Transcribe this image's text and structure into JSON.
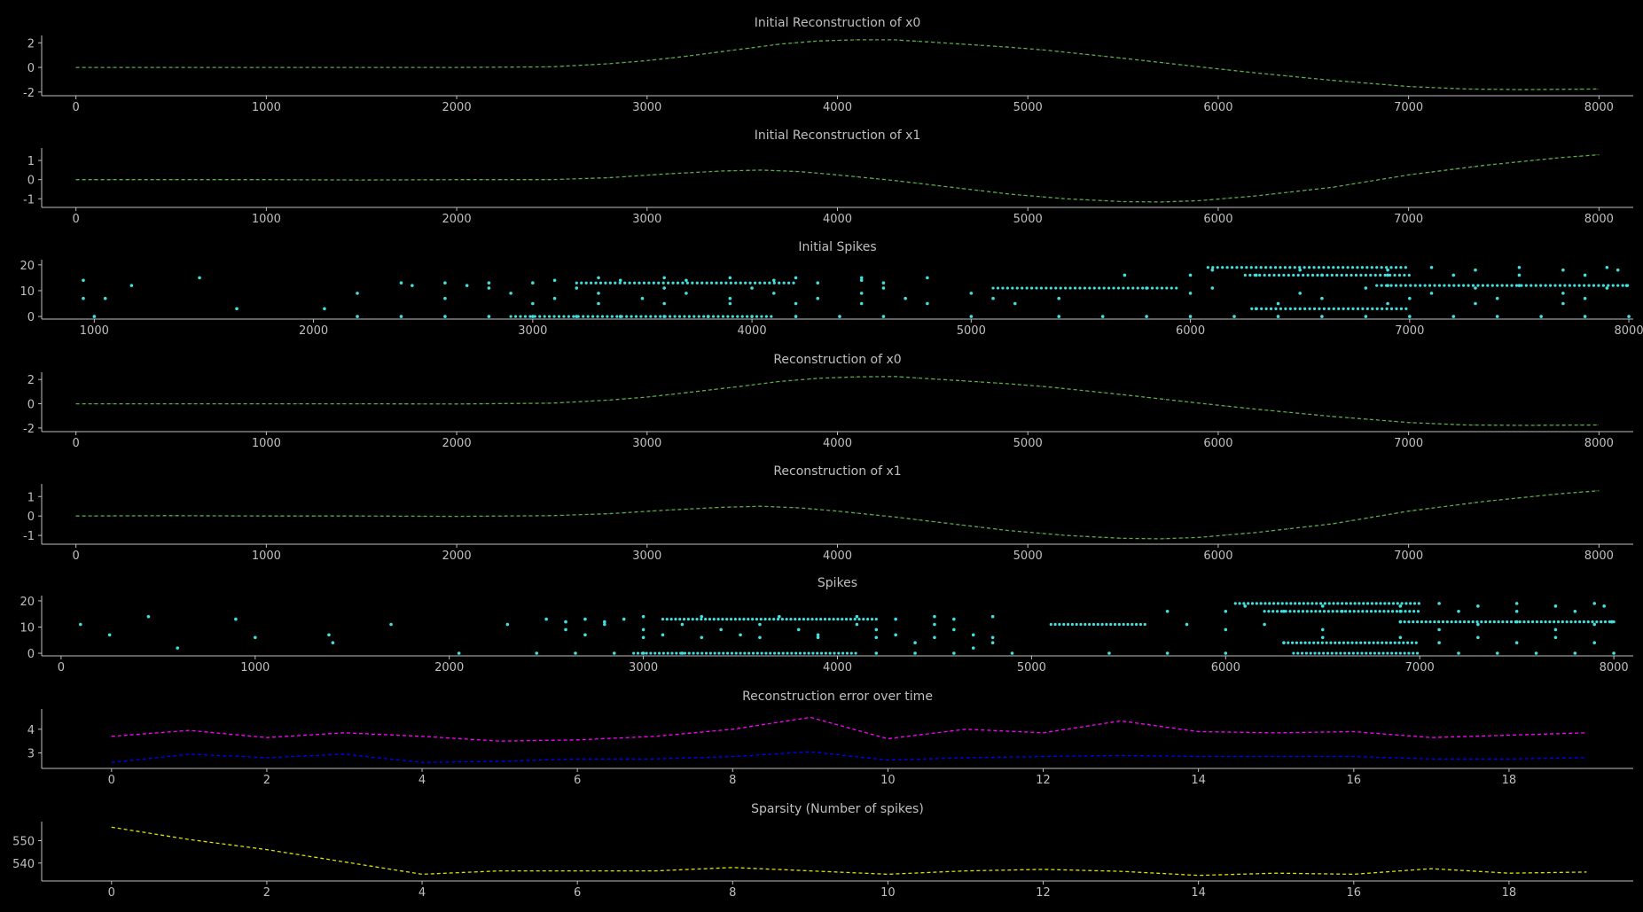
{
  "colors": {
    "background": "#000000",
    "axis": "#bfbfbf",
    "text": "#bfbfbf",
    "reconstruction_green": "#4caf50",
    "reconstruction_orange": "#ff7f0e",
    "spikes": "#40e0e0",
    "error_magenta": "#ff00ff",
    "error_blue": "#0000ff",
    "sparsity_yellow": "#e0e000"
  },
  "chart_data": [
    {
      "type": "line",
      "title": "Initial Reconstruction of x0",
      "xlabel": "",
      "ylabel": "",
      "xlim": [
        -180,
        8180
      ],
      "ylim": [
        -2.3,
        2.6
      ],
      "xticks": [
        0,
        1000,
        2000,
        3000,
        4000,
        5000,
        6000,
        7000,
        8000
      ],
      "yticks": [
        -2,
        0,
        2
      ],
      "grid": false,
      "series": [
        {
          "color": "#4caf50",
          "style": "dashed",
          "x": [
            0,
            500,
            1000,
            1500,
            2000,
            2500,
            2800,
            3000,
            3200,
            3500,
            3700,
            3900,
            4100,
            4300,
            4600,
            4900,
            5100,
            5500,
            5900,
            6200,
            6600,
            7000,
            7300,
            7600,
            8000
          ],
          "y": [
            0,
            0,
            0,
            0,
            0,
            0.05,
            0.3,
            0.55,
            0.9,
            1.5,
            1.9,
            2.15,
            2.25,
            2.25,
            1.95,
            1.65,
            1.4,
            0.75,
            0.05,
            -0.45,
            -1.05,
            -1.55,
            -1.75,
            -1.8,
            -1.75
          ]
        }
      ]
    },
    {
      "type": "line",
      "title": "Initial Reconstruction of x1",
      "xlabel": "",
      "ylabel": "",
      "xlim": [
        -180,
        8180
      ],
      "ylim": [
        -1.45,
        1.65
      ],
      "xticks": [
        0,
        1000,
        2000,
        3000,
        4000,
        5000,
        6000,
        7000,
        8000
      ],
      "yticks": [
        -1,
        0,
        1
      ],
      "grid": false,
      "series": [
        {
          "color": "#4caf50",
          "style": "dashed",
          "x": [
            0,
            500,
            1000,
            1500,
            2000,
            2500,
            2800,
            3100,
            3400,
            3600,
            3800,
            4000,
            4300,
            4600,
            4900,
            5200,
            5500,
            5700,
            5900,
            6200,
            6600,
            7000,
            7400,
            7800,
            8000
          ],
          "y": [
            0,
            0,
            0,
            -0.02,
            0,
            0,
            0.1,
            0.3,
            0.45,
            0.5,
            0.42,
            0.25,
            -0.05,
            -0.4,
            -0.75,
            -1.0,
            -1.15,
            -1.17,
            -1.1,
            -0.85,
            -0.4,
            0.25,
            0.75,
            1.15,
            1.3
          ]
        }
      ]
    },
    {
      "type": "scatter",
      "title": "Initial Spikes",
      "xlabel": "",
      "ylabel": "",
      "xlim": [
        760,
        8020
      ],
      "ylim": [
        -1,
        22
      ],
      "xticks": [
        1000,
        2000,
        3000,
        4000,
        5000,
        6000,
        7000,
        8000
      ],
      "yticks": [
        0,
        10,
        20
      ],
      "grid": false,
      "points_color": "#40e0e0",
      "bands": [
        {
          "y": 0,
          "x": [
            1000,
            2200,
            2400,
            2600,
            2800,
            3000,
            3200,
            3400,
            3600,
            3800,
            4000,
            4200,
            4400,
            4600,
            5000,
            5400,
            5600,
            5800,
            6000,
            6200,
            6400,
            6600,
            6800,
            7000,
            7200,
            7400,
            7600,
            7800,
            8000
          ],
          "dense": [
            [
              2900,
              4100
            ]
          ]
        },
        {
          "y": 3,
          "x": [
            1650,
            2050,
            6300
          ],
          "dense": [
            [
              6280,
              7000
            ]
          ]
        },
        {
          "y": 5,
          "x": [
            3000,
            3300,
            3600,
            3900,
            4200,
            4500,
            4800,
            5200,
            6400,
            6900,
            7300,
            7700
          ],
          "dense": []
        },
        {
          "y": 7,
          "x": [
            950,
            1050,
            2600,
            3100,
            3500,
            3900,
            4300,
            4700,
            5100,
            5400,
            6600,
            7000,
            7400,
            7800
          ],
          "dense": []
        },
        {
          "y": 9,
          "x": [
            2200,
            2900,
            3300,
            3700,
            4100,
            4500,
            5000,
            6000,
            6500,
            7100,
            7700
          ],
          "dense": []
        },
        {
          "y": 11,
          "x": [
            2800,
            3200,
            3600,
            4000,
            4600,
            5800,
            6100,
            6800,
            7300,
            7900
          ],
          "dense": [
            [
              5100,
              5950
            ]
          ]
        },
        {
          "y": 12,
          "x": [
            1170,
            2450,
            2700,
            6900,
            7500,
            7990
          ],
          "dense": [
            [
              6850,
              8000
            ]
          ]
        },
        {
          "y": 13,
          "x": [
            2400,
            2600,
            2800,
            3000,
            4300,
            4600
          ],
          "dense": [
            [
              3200,
              4200
            ]
          ]
        },
        {
          "y": 14,
          "x": [
            950,
            3100,
            3400,
            3700,
            4100,
            4500
          ],
          "dense": []
        },
        {
          "y": 15,
          "x": [
            1480,
            3300,
            3600,
            3900,
            4200,
            4500,
            4800
          ],
          "dense": []
        },
        {
          "y": 16,
          "x": [
            5700,
            6000,
            6300,
            6600,
            6900,
            7200,
            7500,
            7800
          ],
          "dense": [
            [
              6250,
              7000
            ]
          ]
        },
        {
          "y": 18,
          "x": [
            6100,
            6500,
            6900,
            7300,
            7700,
            7950
          ],
          "dense": []
        },
        {
          "y": 19,
          "x": [
            7100,
            7500,
            7900
          ],
          "dense": [
            [
              6080,
              7000
            ]
          ]
        }
      ]
    },
    {
      "type": "line",
      "title": "Reconstruction of x0",
      "xlabel": "",
      "ylabel": "",
      "xlim": [
        -180,
        8180
      ],
      "ylim": [
        -2.3,
        2.6
      ],
      "xticks": [
        0,
        1000,
        2000,
        3000,
        4000,
        5000,
        6000,
        7000,
        8000
      ],
      "yticks": [
        -2,
        0,
        2
      ],
      "grid": false,
      "series": [
        {
          "color": "#4caf50",
          "style": "dashed",
          "x": [
            0,
            500,
            1000,
            1500,
            2000,
            2500,
            2800,
            3000,
            3200,
            3500,
            3700,
            3900,
            4100,
            4300,
            4600,
            4900,
            5100,
            5500,
            5900,
            6200,
            6600,
            7000,
            7300,
            7600,
            8000
          ],
          "y": [
            0,
            0,
            0,
            0,
            -0.02,
            0.05,
            0.3,
            0.55,
            0.9,
            1.45,
            1.85,
            2.1,
            2.22,
            2.25,
            1.95,
            1.65,
            1.4,
            0.75,
            0.05,
            -0.45,
            -1.05,
            -1.55,
            -1.75,
            -1.78,
            -1.75
          ]
        }
      ]
    },
    {
      "type": "line",
      "title": "Reconstruction of x1",
      "xlabel": "",
      "ylabel": "",
      "xlim": [
        -180,
        8180
      ],
      "ylim": [
        -1.45,
        1.65
      ],
      "xticks": [
        0,
        1000,
        2000,
        3000,
        4000,
        5000,
        6000,
        7000,
        8000
      ],
      "yticks": [
        -1,
        0,
        1
      ],
      "grid": false,
      "series": [
        {
          "color": "#4caf50",
          "style": "dashed",
          "x": [
            0,
            500,
            1000,
            1500,
            2000,
            2500,
            2800,
            3100,
            3400,
            3600,
            3800,
            4000,
            4300,
            4600,
            4900,
            5200,
            5500,
            5700,
            5900,
            6200,
            6600,
            7000,
            7400,
            7800,
            8000
          ],
          "y": [
            0,
            0.02,
            0,
            0,
            -0.02,
            0.02,
            0.12,
            0.3,
            0.45,
            0.5,
            0.42,
            0.25,
            -0.05,
            -0.4,
            -0.75,
            -1.0,
            -1.15,
            -1.17,
            -1.1,
            -0.85,
            -0.4,
            0.25,
            0.75,
            1.15,
            1.3
          ]
        }
      ]
    },
    {
      "type": "scatter",
      "title": "Spikes",
      "xlabel": "",
      "ylabel": "",
      "xlim": [
        -100,
        8100
      ],
      "ylim": [
        -1,
        22
      ],
      "xticks": [
        0,
        1000,
        2000,
        3000,
        4000,
        5000,
        6000,
        7000,
        8000
      ],
      "yticks": [
        0,
        10,
        20
      ],
      "grid": false,
      "points_color": "#40e0e0",
      "bands": [
        {
          "y": 0,
          "x": [
            2050,
            2450,
            2650,
            2850,
            3000,
            3200,
            4200,
            4400,
            4600,
            4900,
            5400,
            5700,
            6000,
            7200,
            7400,
            7600,
            7800,
            8000
          ],
          "dense": [
            [
              2950,
              4100
            ],
            [
              6350,
              7000
            ]
          ]
        },
        {
          "y": 2,
          "x": [
            600,
            4700
          ],
          "dense": []
        },
        {
          "y": 4,
          "x": [
            1400,
            4400,
            4800,
            6300,
            7100,
            7500,
            7900
          ],
          "dense": [
            [
              6300,
              7000
            ]
          ]
        },
        {
          "y": 6,
          "x": [
            1000,
            3000,
            3300,
            3600,
            3900,
            4200,
            4500,
            4800,
            6500,
            6900,
            7300,
            7700
          ],
          "dense": []
        },
        {
          "y": 7,
          "x": [
            250,
            1380,
            2700,
            3100,
            3500,
            3900,
            4300,
            4700
          ],
          "dense": []
        },
        {
          "y": 9,
          "x": [
            2600,
            3000,
            3400,
            3800,
            4200,
            4600,
            6000,
            6500,
            7100,
            7700
          ],
          "dense": []
        },
        {
          "y": 11,
          "x": [
            100,
            1700,
            2300,
            2800,
            3200,
            3600,
            4100,
            4500,
            5800,
            6200,
            7300,
            7900
          ],
          "dense": [
            [
              5100,
              5600
            ]
          ]
        },
        {
          "y": 12,
          "x": [
            2600,
            2800,
            6900,
            7500,
            7990
          ],
          "dense": [
            [
              6900,
              8000
            ]
          ]
        },
        {
          "y": 13,
          "x": [
            900,
            2500,
            2700,
            2900,
            4300,
            4600
          ],
          "dense": [
            [
              3100,
              4200
            ]
          ]
        },
        {
          "y": 14,
          "x": [
            450,
            3000,
            3300,
            3700,
            4100,
            4500,
            4800
          ],
          "dense": []
        },
        {
          "y": 16,
          "x": [
            5700,
            6000,
            6300,
            6600,
            6900,
            7200,
            7500,
            7800
          ],
          "dense": [
            [
              6200,
              7000
            ]
          ]
        },
        {
          "y": 18,
          "x": [
            6100,
            6500,
            6900,
            7300,
            7700,
            7950
          ],
          "dense": []
        },
        {
          "y": 19,
          "x": [
            7100,
            7500,
            7900
          ],
          "dense": [
            [
              6050,
              7000
            ]
          ]
        }
      ]
    },
    {
      "type": "line",
      "title": "Reconstruction error over time",
      "xlabel": "",
      "ylabel": "",
      "xlim": [
        -0.9,
        19.6
      ],
      "ylim": [
        2.35,
        4.85
      ],
      "xticks": [
        0,
        2,
        4,
        6,
        8,
        10,
        12,
        14,
        16,
        18
      ],
      "yticks": [
        3,
        4
      ],
      "grid": false,
      "series": [
        {
          "color": "#ff00ff",
          "style": "dashed",
          "x": [
            0,
            1,
            2,
            3,
            4,
            5,
            6,
            7,
            8,
            9,
            10,
            11,
            12,
            13,
            14,
            15,
            16,
            17,
            18,
            19
          ],
          "y": [
            3.7,
            3.95,
            3.65,
            3.85,
            3.7,
            3.5,
            3.55,
            3.7,
            4.0,
            4.5,
            3.6,
            4.0,
            3.85,
            4.35,
            3.9,
            3.85,
            3.9,
            3.65,
            3.75,
            3.85
          ]
        },
        {
          "color": "#0000ff",
          "style": "dashed",
          "x": [
            0,
            1,
            2,
            3,
            4,
            5,
            6,
            7,
            8,
            9,
            10,
            11,
            12,
            13,
            14,
            15,
            16,
            17,
            18,
            19
          ],
          "y": [
            2.6,
            2.95,
            2.8,
            2.95,
            2.6,
            2.65,
            2.75,
            2.75,
            2.85,
            3.05,
            2.7,
            2.8,
            2.85,
            2.9,
            2.85,
            2.85,
            2.85,
            2.75,
            2.75,
            2.8
          ]
        }
      ]
    },
    {
      "type": "line",
      "title": "Sparsity (Number of spikes)",
      "xlabel": "",
      "ylabel": "",
      "xlim": [
        -0.9,
        19.6
      ],
      "ylim": [
        532,
        558.5
      ],
      "xticks": [
        0,
        2,
        4,
        6,
        8,
        10,
        12,
        14,
        16,
        18
      ],
      "yticks": [
        540,
        550
      ],
      "grid": false,
      "series": [
        {
          "color": "#e0e000",
          "style": "dashed",
          "x": [
            0,
            1,
            2,
            3,
            4,
            5,
            6,
            7,
            8,
            9,
            10,
            11,
            12,
            13,
            14,
            15,
            16,
            17,
            18,
            19
          ],
          "y": [
            556,
            550.5,
            546,
            540.5,
            535,
            536.5,
            536.5,
            536.5,
            538,
            536.5,
            535,
            536.5,
            537.2,
            536.3,
            534.5,
            535.5,
            535,
            537.5,
            535.5,
            536
          ]
        }
      ]
    }
  ]
}
